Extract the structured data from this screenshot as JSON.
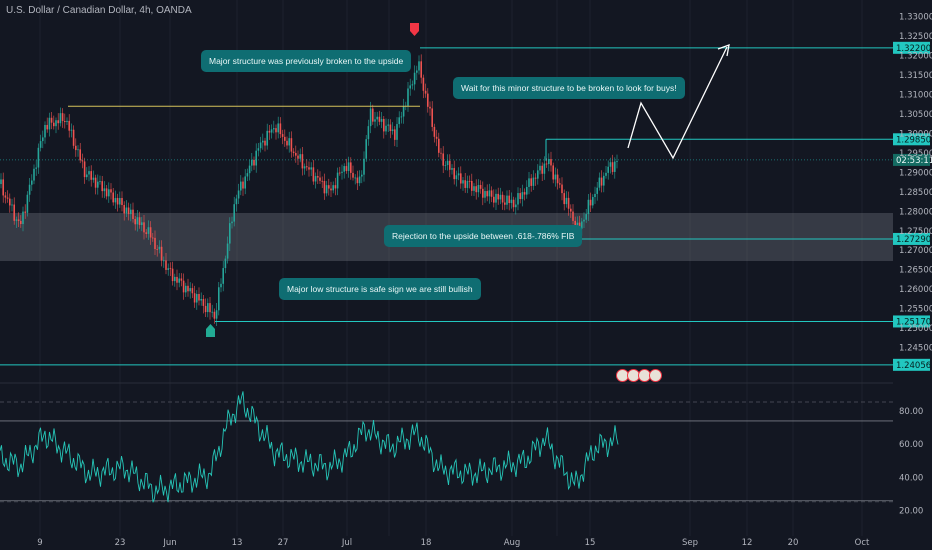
{
  "symbol_title": "U.S. Dollar / Canadian Dollar, 4h, OANDA",
  "colors": {
    "accent": "#26a69a",
    "level": "#22c7c0",
    "up": "#26a69a",
    "down": "#ef5350",
    "rsi": "#26c6b8",
    "yellow": "#d4c25a"
  },
  "annotations": {
    "major_structure": "Major structure was previously broken to the upside",
    "wait_minor": "Wait for this minor structure to be broken to look for buys!",
    "rejection": "Rejection to the upside between .618-.786% FIB",
    "major_low": "Major low structure is safe sign we are still bullish"
  },
  "price_levels": [
    "1.32200",
    "1.29850",
    "02:53:11",
    "1.27290",
    "1.25170",
    "1.24056"
  ],
  "price_axis_ticks": [
    "1.33000",
    "1.32500",
    "1.32000",
    "1.31500",
    "1.31000",
    "1.30500",
    "1.30000",
    "1.29500",
    "1.29000",
    "1.28500",
    "1.28000",
    "1.27500",
    "1.27000",
    "1.26500",
    "1.26000",
    "1.25500",
    "1.25000",
    "1.24500"
  ],
  "rsi_axis_ticks": [
    "80.00",
    "60.00",
    "40.00",
    "20.00"
  ],
  "time_axis_ticks": [
    "9",
    "23",
    "Jun",
    "13",
    "27",
    "Jul",
    "18",
    "Aug",
    "15",
    "Sep",
    "12",
    "20",
    "Oct"
  ],
  "chart_data": {
    "type": "candlestick",
    "title": "U.S. Dollar / Canadian Dollar, 4h, OANDA",
    "ylim": [
      1.24,
      1.333
    ],
    "key_levels": [
      1.322,
      1.2985,
      1.2729,
      1.2517,
      1.24056
    ],
    "support_zone": [
      1.2675,
      1.2785
    ],
    "rsi": {
      "ylim": [
        15,
        92
      ],
      "levels": [
        80,
        60,
        40,
        20
      ]
    }
  }
}
